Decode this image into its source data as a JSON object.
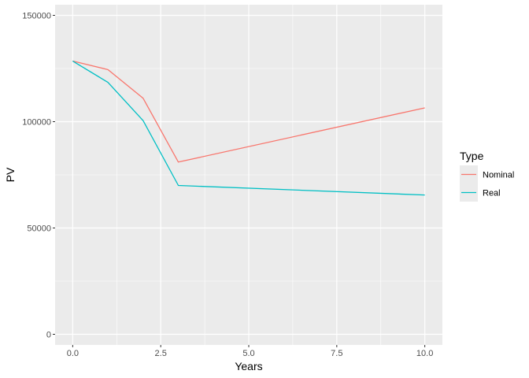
{
  "chart_data": {
    "type": "line",
    "xlabel": "Years",
    "ylabel": "PV",
    "xlim": [
      -0.5,
      10.5
    ],
    "ylim": [
      -5000,
      155000
    ],
    "x_ticks": [
      0,
      2.5,
      5,
      7.5,
      10
    ],
    "x_tick_labels": [
      "0.0",
      "2.5",
      "5.0",
      "7.5",
      "10.0"
    ],
    "y_ticks": [
      0,
      50000,
      100000,
      150000
    ],
    "y_tick_labels": [
      "0",
      "50000",
      "100000",
      "150000"
    ],
    "grid": true,
    "legend": {
      "title": "Type",
      "position": "right"
    },
    "series": [
      {
        "name": "Nominal",
        "color": "#F8766D",
        "x": [
          0,
          1,
          2,
          3,
          10
        ],
        "y": [
          128500,
          124500,
          111000,
          81000,
          106500
        ]
      },
      {
        "name": "Real",
        "color": "#00BFC4",
        "x": [
          0,
          1,
          2,
          3,
          10
        ],
        "y": [
          128500,
          118500,
          100500,
          70000,
          65500
        ]
      }
    ]
  }
}
